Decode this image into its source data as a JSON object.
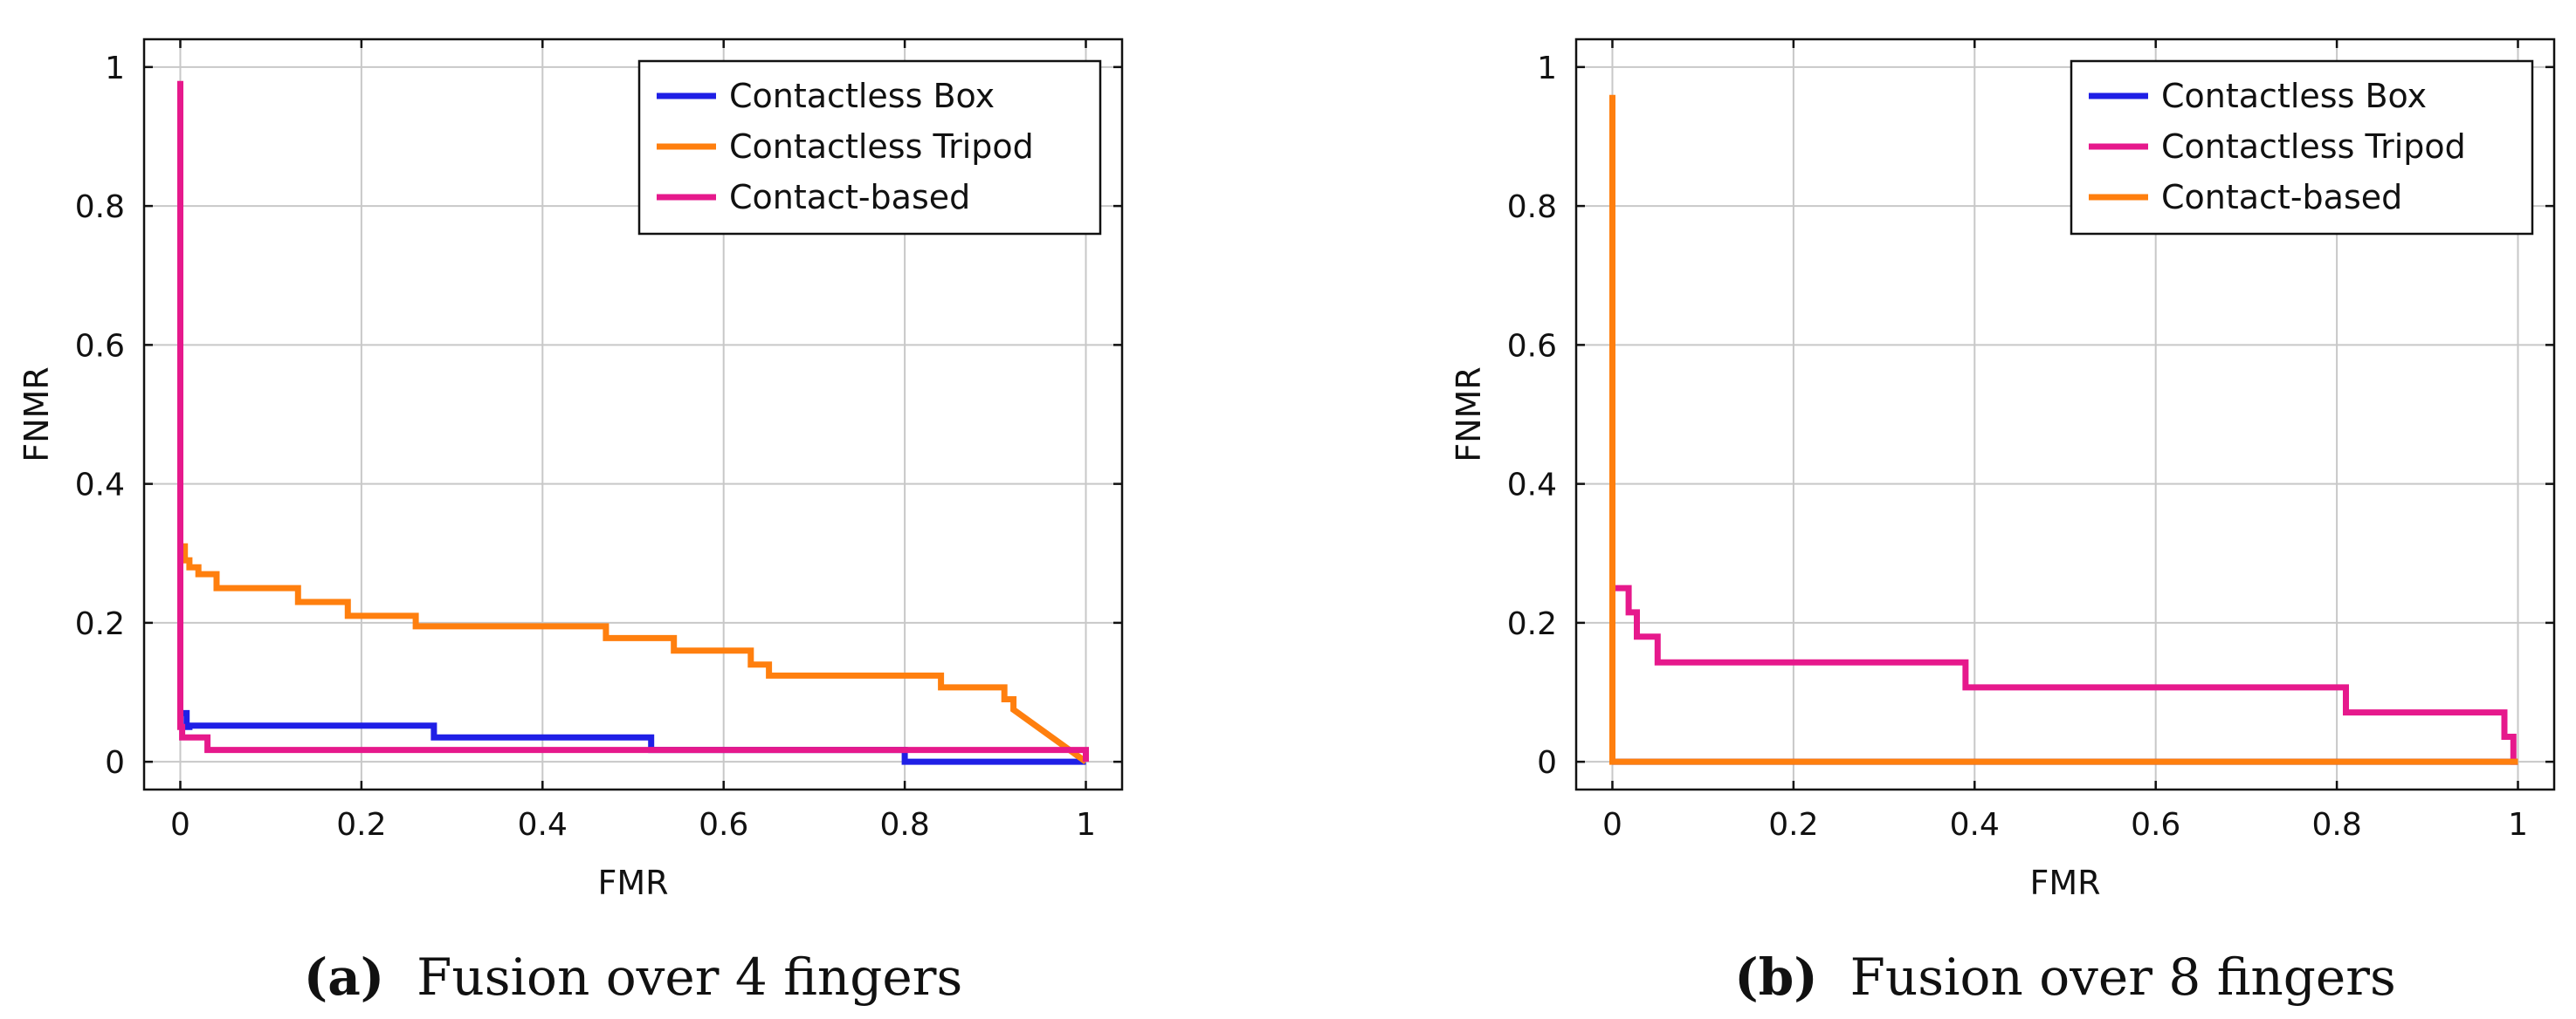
{
  "chart_data": [
    {
      "type": "line",
      "panel_label": "(a)",
      "caption": "Fusion over 4 fingers",
      "xlabel": "FMR",
      "ylabel": "FNMR",
      "xlim": [
        0,
        1
      ],
      "ylim": [
        0,
        1
      ],
      "xticks": [
        "0",
        "0.2",
        "0.4",
        "0.6",
        "0.8",
        "1"
      ],
      "yticks": [
        "0",
        "0.2",
        "0.4",
        "0.6",
        "0.8",
        "1"
      ],
      "grid": true,
      "legend": "top-right",
      "series": [
        {
          "name": "Contactless Box",
          "color": "#1f1fe6",
          "x": [
            0.0,
            0.0,
            0.007,
            0.007,
            0.01,
            0.01,
            0.28,
            0.28,
            0.52,
            0.52,
            0.8,
            0.8,
            1.0
          ],
          "y": [
            0.06,
            0.07,
            0.07,
            0.05,
            0.05,
            0.052,
            0.052,
            0.035,
            0.035,
            0.017,
            0.017,
            0.0,
            0.0
          ]
        },
        {
          "name": "Contactless Tripod",
          "color": "#ff7f0e",
          "x": [
            0.0,
            0.0,
            0.005,
            0.005,
            0.01,
            0.01,
            0.02,
            0.02,
            0.04,
            0.04,
            0.13,
            0.13,
            0.185,
            0.185,
            0.26,
            0.26,
            0.47,
            0.47,
            0.545,
            0.545,
            0.63,
            0.63,
            0.65,
            0.65,
            0.84,
            0.84,
            0.91,
            0.91,
            0.92,
            0.92,
            1.0
          ],
          "y": [
            0.33,
            0.31,
            0.31,
            0.29,
            0.29,
            0.28,
            0.28,
            0.27,
            0.27,
            0.25,
            0.25,
            0.23,
            0.23,
            0.21,
            0.21,
            0.195,
            0.195,
            0.178,
            0.178,
            0.16,
            0.16,
            0.14,
            0.14,
            0.124,
            0.124,
            0.107,
            0.107,
            0.09,
            0.09,
            0.075,
            0.0
          ]
        },
        {
          "name": "Contact-based",
          "color": "#e6198c",
          "x": [
            0.0,
            0.0,
            0.002,
            0.002,
            0.03,
            0.03,
            1.0,
            1.0
          ],
          "y": [
            0.98,
            0.05,
            0.05,
            0.035,
            0.035,
            0.017,
            0.017,
            0.0
          ]
        }
      ]
    },
    {
      "type": "line",
      "panel_label": "(b)",
      "caption": "Fusion over 8 fingers",
      "xlabel": "FMR",
      "ylabel": "FNMR",
      "xlim": [
        0,
        1
      ],
      "ylim": [
        0,
        1
      ],
      "xticks": [
        "0",
        "0.2",
        "0.4",
        "0.6",
        "0.8",
        "1"
      ],
      "yticks": [
        "0",
        "0.2",
        "0.4",
        "0.6",
        "0.8",
        "1"
      ],
      "grid": true,
      "legend": "top-right",
      "series": [
        {
          "name": "Contactless Box",
          "color": "#1f1fe6",
          "x": [
            0.0,
            0.0,
            1.0
          ],
          "y": [
            0.0,
            0.0,
            0.0
          ]
        },
        {
          "name": "Contactless Tripod",
          "color": "#e6198c",
          "x": [
            0.0,
            0.0,
            0.018,
            0.018,
            0.027,
            0.027,
            0.05,
            0.05,
            0.39,
            0.39,
            0.81,
            0.81,
            0.985,
            0.985,
            0.995,
            0.995,
            1.0
          ],
          "y": [
            0.25,
            0.25,
            0.25,
            0.215,
            0.215,
            0.18,
            0.18,
            0.143,
            0.143,
            0.107,
            0.107,
            0.071,
            0.071,
            0.036,
            0.036,
            0.0,
            0.0
          ]
        },
        {
          "name": "Contact-based",
          "color": "#ff7f0e",
          "x": [
            0.0,
            0.0,
            1.0
          ],
          "y": [
            0.96,
            0.0,
            0.0
          ]
        }
      ]
    }
  ]
}
